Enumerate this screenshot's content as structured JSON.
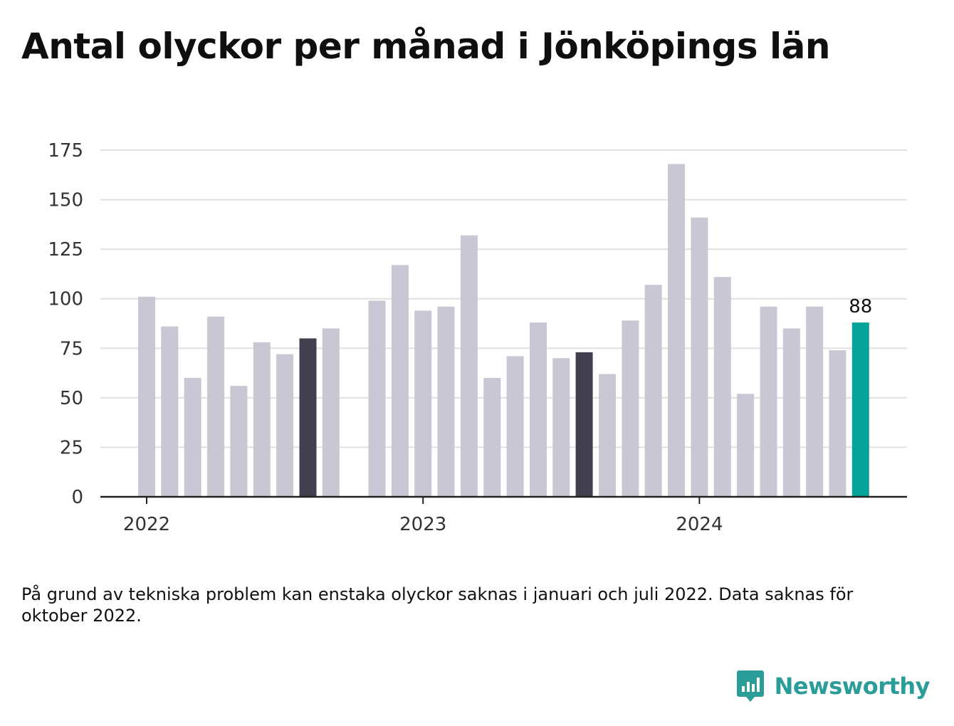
{
  "title": "Antal olyckor per månad i Jönköpings län",
  "note": "På grund av tekniska problem kan enstaka olyckor saknas i januari och juli 2022. Data saknas för oktober 2022.",
  "brand": {
    "name": "Newsworthy",
    "icon": "newsworthy-logo-icon"
  },
  "colors": {
    "default_bar": "#c8c7d3",
    "highlight_bar": "#42404f",
    "latest_bar": "#05a39a",
    "grid": "#e0e0e0",
    "axis": "#222222"
  },
  "chart_data": {
    "type": "bar",
    "title": "Antal olyckor per månad i Jönköpings län",
    "xlabel": "",
    "ylabel": "",
    "ylim": [
      0,
      175
    ],
    "yticks": [
      0,
      25,
      50,
      75,
      100,
      125,
      150,
      175
    ],
    "x_tick_labels": [
      "2022",
      "2023",
      "2024"
    ],
    "grid": true,
    "categories": [
      "2022-01",
      "2022-02",
      "2022-03",
      "2022-04",
      "2022-05",
      "2022-06",
      "2022-07",
      "2022-08",
      "2022-09",
      "2022-10",
      "2022-11",
      "2022-12",
      "2023-01",
      "2023-02",
      "2023-03",
      "2023-04",
      "2023-05",
      "2023-06",
      "2023-07",
      "2023-08",
      "2023-09",
      "2023-10",
      "2023-11",
      "2023-12",
      "2024-01",
      "2024-02",
      "2024-03",
      "2024-04",
      "2024-05",
      "2024-06",
      "2024-07",
      "2024-08"
    ],
    "values": [
      101,
      86,
      60,
      91,
      56,
      78,
      72,
      80,
      85,
      null,
      99,
      117,
      94,
      96,
      132,
      60,
      71,
      88,
      70,
      73,
      62,
      89,
      107,
      168,
      141,
      111,
      52,
      96,
      85,
      96,
      74,
      88
    ],
    "highlighted": [
      "2022-08",
      "2023-08"
    ],
    "latest": "2024-08",
    "data_labels": [
      {
        "category": "2024-08",
        "text": "88"
      }
    ]
  }
}
